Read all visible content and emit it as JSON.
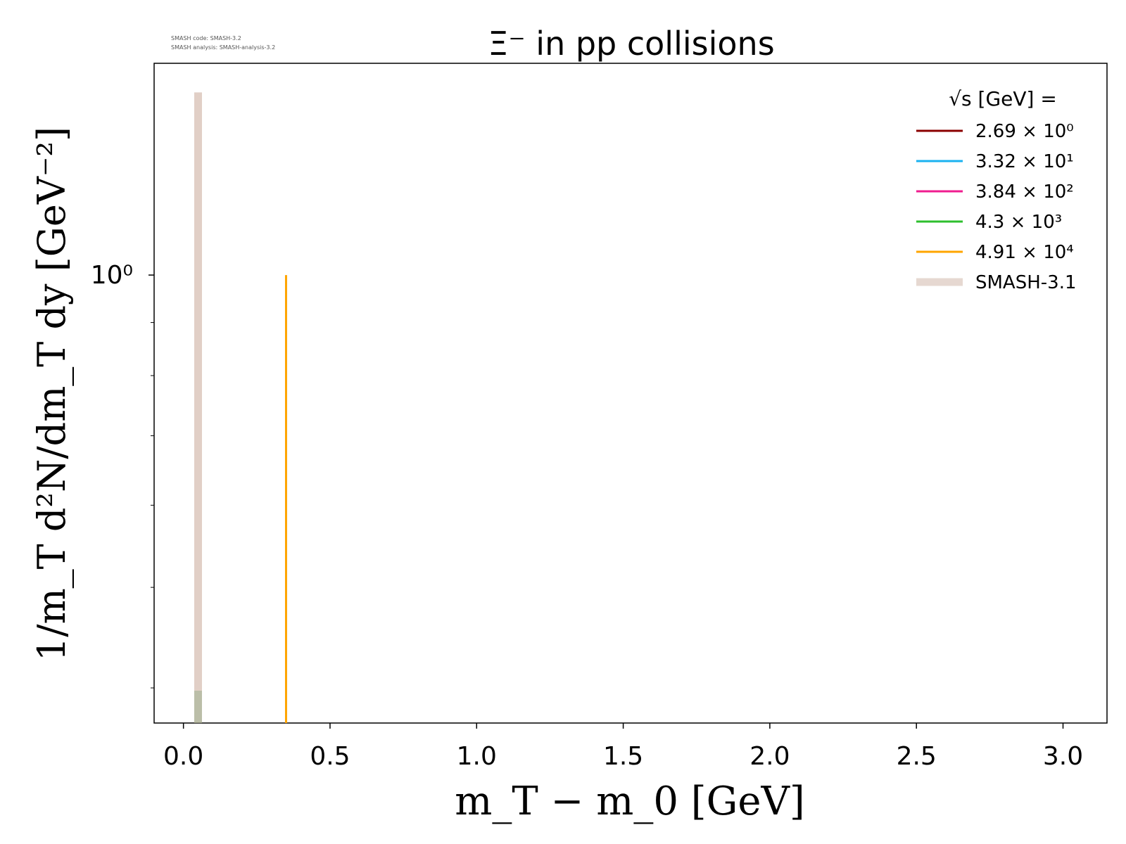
{
  "chart_data": {
    "type": "line",
    "title": "Ξ⁻ in pp collisions",
    "xlabel": "m_T − m_0 [GeV]",
    "ylabel": "1/m_T d²N/dm_T dy [GeV⁻²]",
    "xlim": [
      -0.1,
      3.15
    ],
    "ylim": [
      0.37,
      1.6
    ],
    "yscale": "log",
    "grid": false,
    "legend_position": "top-right",
    "xticks": [
      "0.0",
      "0.5",
      "1.0",
      "1.5",
      "2.0",
      "2.5",
      "3.0"
    ],
    "yticks": [
      "10⁰"
    ],
    "legend_title": "√s [GeV] =",
    "series": [
      {
        "name": "2.69 × 10⁰",
        "color": "#8b0000",
        "points": []
      },
      {
        "name": "3.32 × 10¹",
        "color": "#1ab2f0",
        "points": []
      },
      {
        "name": "3.84 × 10²",
        "color": "#ef1c8f",
        "points": []
      },
      {
        "name": "4.3 × 10³",
        "color": "#2ebf2e",
        "points": []
      },
      {
        "name": "4.91 × 10⁴",
        "color": "#ffa500",
        "points": [
          [
            0.35,
            0.37
          ],
          [
            0.35,
            1.0
          ]
        ]
      },
      {
        "name": "SMASH-3.1",
        "color": "#c8a898",
        "band": true,
        "points": [
          [
            0.05,
            0.37
          ],
          [
            0.05,
            1.5
          ]
        ]
      }
    ]
  },
  "watermark": {
    "line1": "SMASH code:      SMASH-3.2",
    "line2": "SMASH analysis: SMASH-analysis-3.2"
  }
}
